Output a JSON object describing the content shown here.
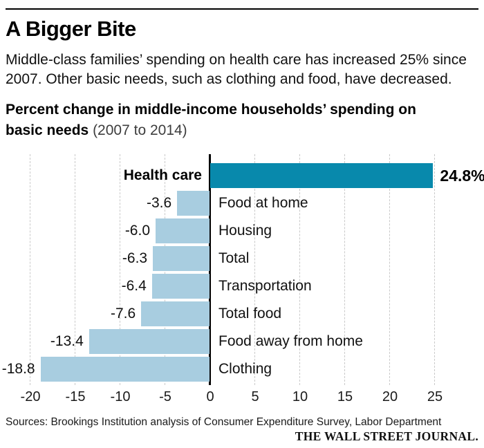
{
  "page": {
    "title": "A Bigger Bite",
    "subtitle_line1": "Middle-class families’ spending on health care has increased 25% since",
    "subtitle_line2": "2007. Other basic needs, such as clothing and food, have decreased.",
    "chart_heading_line1": "Percent change in middle-income households’ spending on",
    "chart_heading_line2_bold": "basic needs",
    "chart_heading_line2_note": " (2007 to 2014)",
    "source_line": "Sources: Brookings Institution analysis of Consumer Expenditure Survey, Labor Department",
    "brand": "THE WALL STREET JOURNAL."
  },
  "colors": {
    "positive_bar": "#0889ac",
    "negative_bar": "#a8cde0",
    "zero_axis": "#000000",
    "gridline": "#c9c9c9"
  },
  "chart_data": {
    "type": "bar",
    "orientation": "horizontal",
    "title": "Percent change in middle-income households’ spending on basic needs (2007 to 2014)",
    "categories": [
      "Health care",
      "Food at home",
      "Housing",
      "Total",
      "Transportation",
      "Total food",
      "Food away from home",
      "Clothing"
    ],
    "values": [
      24.8,
      -3.6,
      -6.0,
      -6.3,
      -6.4,
      -7.6,
      -13.4,
      -18.8
    ],
    "value_labels": [
      "24.8%",
      "-3.6",
      "-6.0",
      "-6.3",
      "-6.4",
      "-7.6",
      "-13.4",
      "-18.8"
    ],
    "xlabel": "",
    "ylabel": "",
    "xlim": [
      -20,
      25
    ],
    "x_ticks": [
      -20,
      -15,
      -10,
      -5,
      0,
      5,
      10,
      15,
      20,
      25
    ],
    "x_tick_labels": [
      "-20",
      "-15",
      "-10",
      "-5",
      "0",
      "5",
      "10",
      "15",
      "20",
      "25"
    ],
    "grid": "vertical-dashed",
    "legend": "none"
  }
}
